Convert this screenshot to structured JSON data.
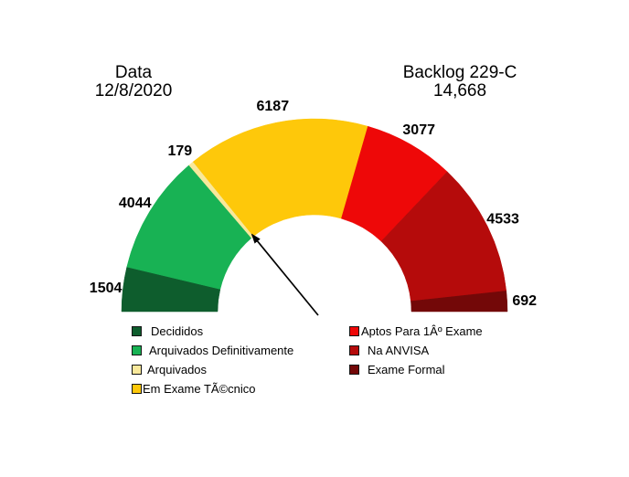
{
  "chart_data": {
    "type": "pie",
    "variant": "half-donut-gauge",
    "title_left": {
      "line1": "Data",
      "line2": "12/8/2020"
    },
    "title_right": {
      "line1": "Backlog 229-C",
      "line2": "14,668"
    },
    "backlog_total_label": "14,668",
    "total_all_segments": 20216,
    "segments": [
      {
        "label": "Decididos",
        "value": 1504,
        "color": "#0E5D2D"
      },
      {
        "label": "Arquivados Definitivamente",
        "value": 4044,
        "color": "#18B254"
      },
      {
        "label": "Arquivados",
        "value": 179,
        "color": "#F8E89B"
      },
      {
        "label": "Em Exame TÃ©cnico",
        "value": 6187,
        "color": "#FEC80A"
      },
      {
        "label": "Aptos Para 1Âº Exame",
        "value": 3077,
        "color": "#EE0808"
      },
      {
        "label": "Na ANVISA",
        "value": 4533,
        "color": "#B50B0B"
      },
      {
        "label": "Exame Formal",
        "value": 692,
        "color": "#730808"
      }
    ],
    "annotation": {
      "type": "arrow",
      "target_boundary_index": 3,
      "description": "arrow from center pointing to inner-edge boundary between Arquivados and Em Exame TÃ©cnico"
    },
    "legend_position": "bottom-two-columns",
    "grid": false
  },
  "legend_left": {
    "items": [
      {
        "label": "Decididos",
        "color": "#0E5D2D"
      },
      {
        "label": "Arquivados Definitivamente",
        "color": "#18B254"
      },
      {
        "label": "Arquivados",
        "color": "#F8E89B"
      },
      {
        "label": "Em Exame TÃ©cnico",
        "color": "#FEC80A"
      }
    ]
  },
  "legend_right": {
    "items": [
      {
        "label": "Aptos Para 1Âº Exame",
        "color": "#EE0808"
      },
      {
        "label": "Na ANVISA",
        "color": "#B50B0B"
      },
      {
        "label": "Exame Formal",
        "color": "#730808"
      }
    ]
  }
}
